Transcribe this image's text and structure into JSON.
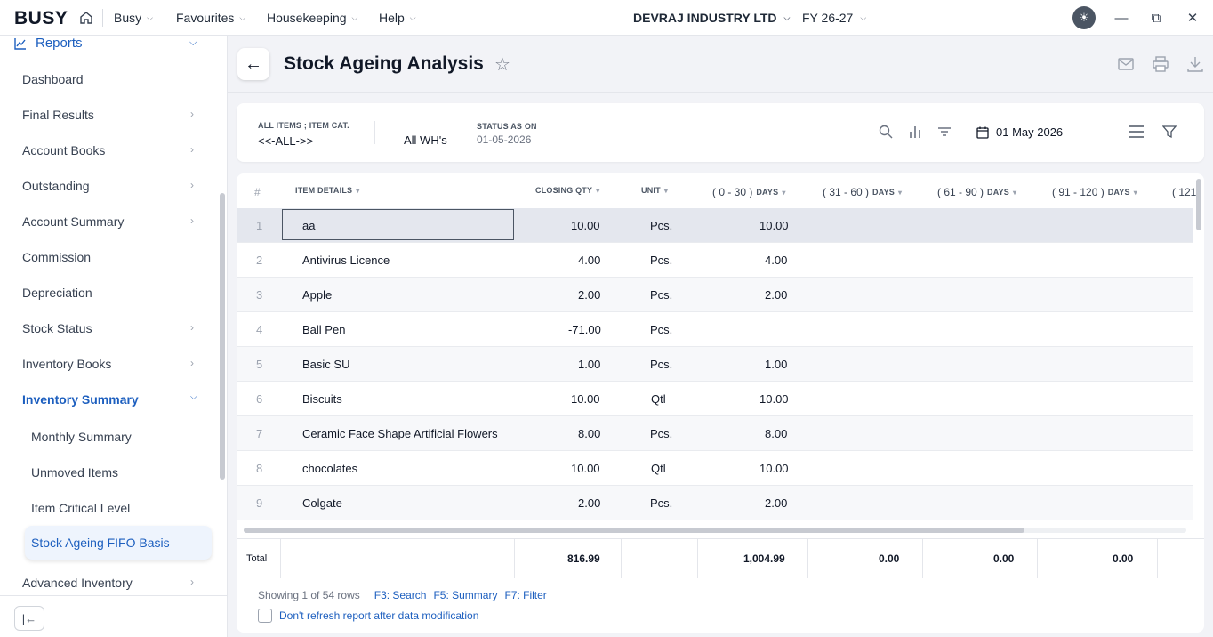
{
  "app": {
    "logo": "BUSY",
    "menus": [
      "Busy",
      "Favourites",
      "Housekeeping",
      "Help"
    ],
    "company": "DEVRAJ INDUSTRY LTD",
    "fy": "FY 26-27"
  },
  "sidebar": {
    "section": "Reports",
    "items": [
      {
        "label": "Dashboard"
      },
      {
        "label": "Final Results"
      },
      {
        "label": "Account Books"
      },
      {
        "label": "Outstanding"
      },
      {
        "label": "Account Summary"
      },
      {
        "label": "Commission"
      },
      {
        "label": "Depreciation"
      },
      {
        "label": "Stock Status"
      },
      {
        "label": "Inventory Books"
      },
      {
        "label": "Inventory Summary"
      }
    ],
    "sub_items": [
      {
        "label": "Monthly Summary"
      },
      {
        "label": "Unmoved Items"
      },
      {
        "label": "Item Critical Level"
      }
    ],
    "selected": "Stock Ageing FIFO Basis",
    "after": "Advanced Inventory"
  },
  "page": {
    "title": "Stock Ageing Analysis"
  },
  "filters": {
    "items_label": "ALL ITEMS ; ITEM CAT.",
    "items_value": "<<-ALL->>",
    "warehouse": "All WH's",
    "status_label": "STATUS AS ON",
    "status_value": "01-05-2026",
    "date": "01 May 2026"
  },
  "table": {
    "headers": {
      "num": "#",
      "item": "ITEM DETAILS",
      "closing": "CLOSING QTY",
      "unit": "UNIT",
      "b1": "( 0 - 30 )",
      "b2": "( 31 - 60 )",
      "b3": "( 61 - 90 )",
      "b4": "( 91 - 120 )",
      "b5": "( 121",
      "days": "DAYS"
    },
    "rows": [
      {
        "n": "1",
        "item": "aa",
        "qty": "10.00",
        "unit": "Pcs.",
        "b1": "10.00"
      },
      {
        "n": "2",
        "item": "Antivirus Licence",
        "qty": "4.00",
        "unit": "Pcs.",
        "b1": "4.00"
      },
      {
        "n": "3",
        "item": "Apple",
        "qty": "2.00",
        "unit": "Pcs.",
        "b1": "2.00"
      },
      {
        "n": "4",
        "item": "Ball Pen",
        "qty": "-71.00",
        "unit": "Pcs.",
        "b1": ""
      },
      {
        "n": "5",
        "item": "Basic SU",
        "qty": "1.00",
        "unit": "Pcs.",
        "b1": "1.00"
      },
      {
        "n": "6",
        "item": "Biscuits",
        "qty": "10.00",
        "unit": "Qtl",
        "b1": "10.00"
      },
      {
        "n": "7",
        "item": "Ceramic Face Shape Artificial Flowers",
        "qty": "8.00",
        "unit": "Pcs.",
        "b1": "8.00"
      },
      {
        "n": "8",
        "item": "chocolates",
        "qty": "10.00",
        "unit": "Qtl",
        "b1": "10.00"
      },
      {
        "n": "9",
        "item": "Colgate",
        "qty": "2.00",
        "unit": "Pcs.",
        "b1": "2.00"
      }
    ],
    "total": {
      "label": "Total",
      "qty": "816.99",
      "b1": "1,004.99",
      "b2": "0.00",
      "b3": "0.00",
      "b4": "0.00"
    }
  },
  "footer": {
    "showing": "Showing 1 of 54 rows",
    "search": "F3: Search",
    "summary": "F5: Summary",
    "filter": "F7: Filter",
    "refresh": "Don't refresh report after data modification"
  }
}
